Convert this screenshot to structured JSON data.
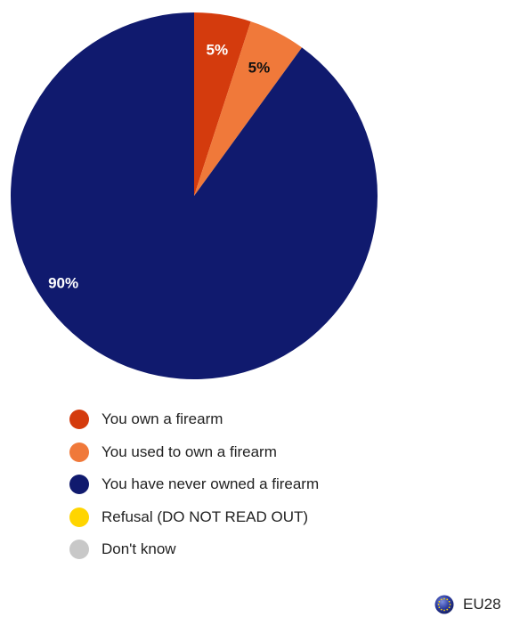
{
  "chart_data": {
    "type": "pie",
    "categories": [
      "You own a firearm",
      "You used to own a firearm",
      "You have never owned a firearm",
      "Refusal (DO NOT READ OUT)",
      "Don't know"
    ],
    "values": [
      5,
      5,
      90,
      0,
      0
    ],
    "data_labels": [
      "5%",
      "5%",
      "90%",
      "",
      ""
    ],
    "colors": [
      "#d43b0d",
      "#f0793a",
      "#101a6e",
      "#ffd500",
      "#c8c8c8"
    ],
    "label_colors": [
      "#ffffff",
      "#111111",
      "#ffffff",
      "",
      ""
    ],
    "legend_position": "bottom-left",
    "start": "top",
    "direction": "clockwise"
  },
  "legend": {
    "items": [
      {
        "label": "You own a firearm",
        "color": "#d43b0d"
      },
      {
        "label": "You used to own a firearm",
        "color": "#f0793a"
      },
      {
        "label": "You have never owned a firearm",
        "color": "#101a6e"
      },
      {
        "label": "Refusal (DO NOT READ OUT)",
        "color": "#ffd500"
      },
      {
        "label": "Don't know",
        "color": "#c8c8c8"
      }
    ]
  },
  "badge": {
    "label": "EU28",
    "icon": "eu-flag-icon"
  }
}
